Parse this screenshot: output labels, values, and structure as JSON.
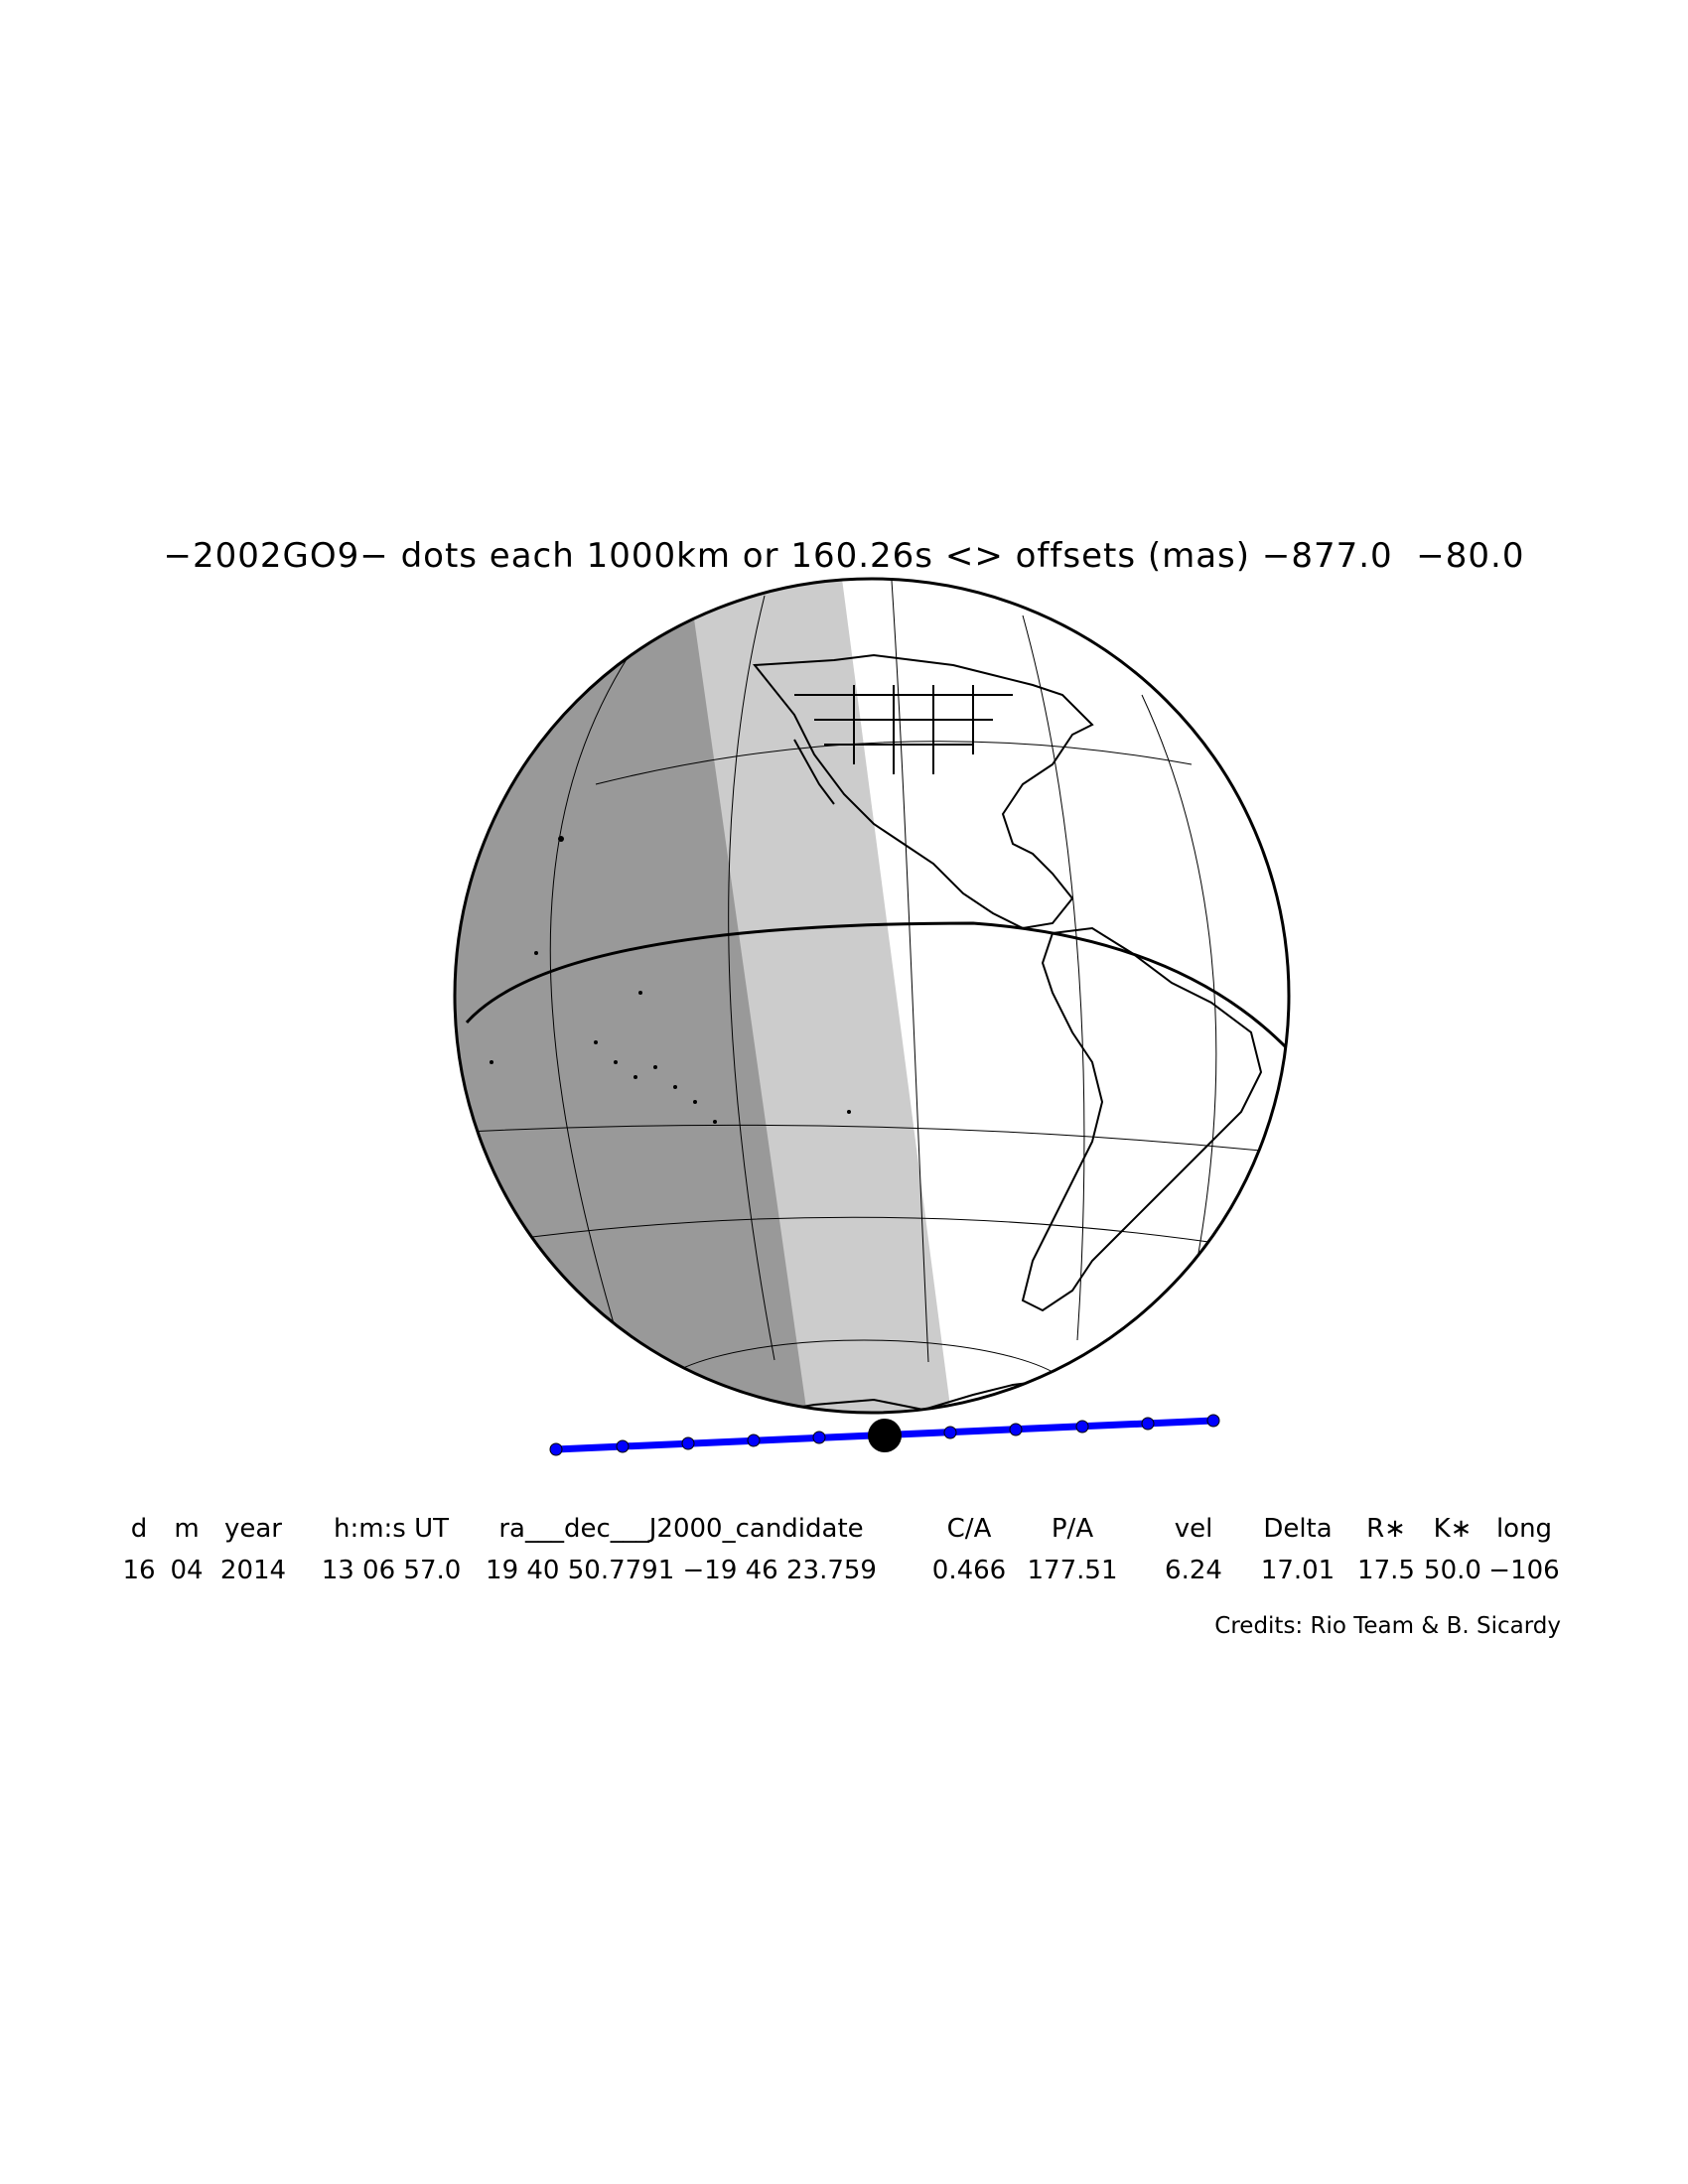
{
  "title": "−2002GO9− dots each 1000km or 160.26s <> offsets (mas) −877.0  −80.0",
  "map": {
    "occultation_path_color": "#0000ff",
    "night_shade_color": "#999999",
    "twilight_shade_color": "#cccccc",
    "day_color": "#ffffff",
    "path_dot_spacing_km": 1000,
    "path_dot_spacing_s": 160.26
  },
  "table": {
    "headers": [
      "d",
      "m",
      "year",
      "h:m:s UT",
      "ra___dec___J2000_candidate",
      "C/A",
      "P/A",
      "vel",
      "Delta",
      "R∗",
      "K∗",
      "long"
    ],
    "values": [
      "16",
      "04",
      "2014",
      "13 06 57.0",
      "19 40 50.7791 −19 46 23.759",
      "0.466",
      "177.51",
      "6.24",
      "17.01",
      "17.5",
      "50.0",
      "−106"
    ]
  },
  "credits": "Credits: Rio Team & B. Sicardy"
}
